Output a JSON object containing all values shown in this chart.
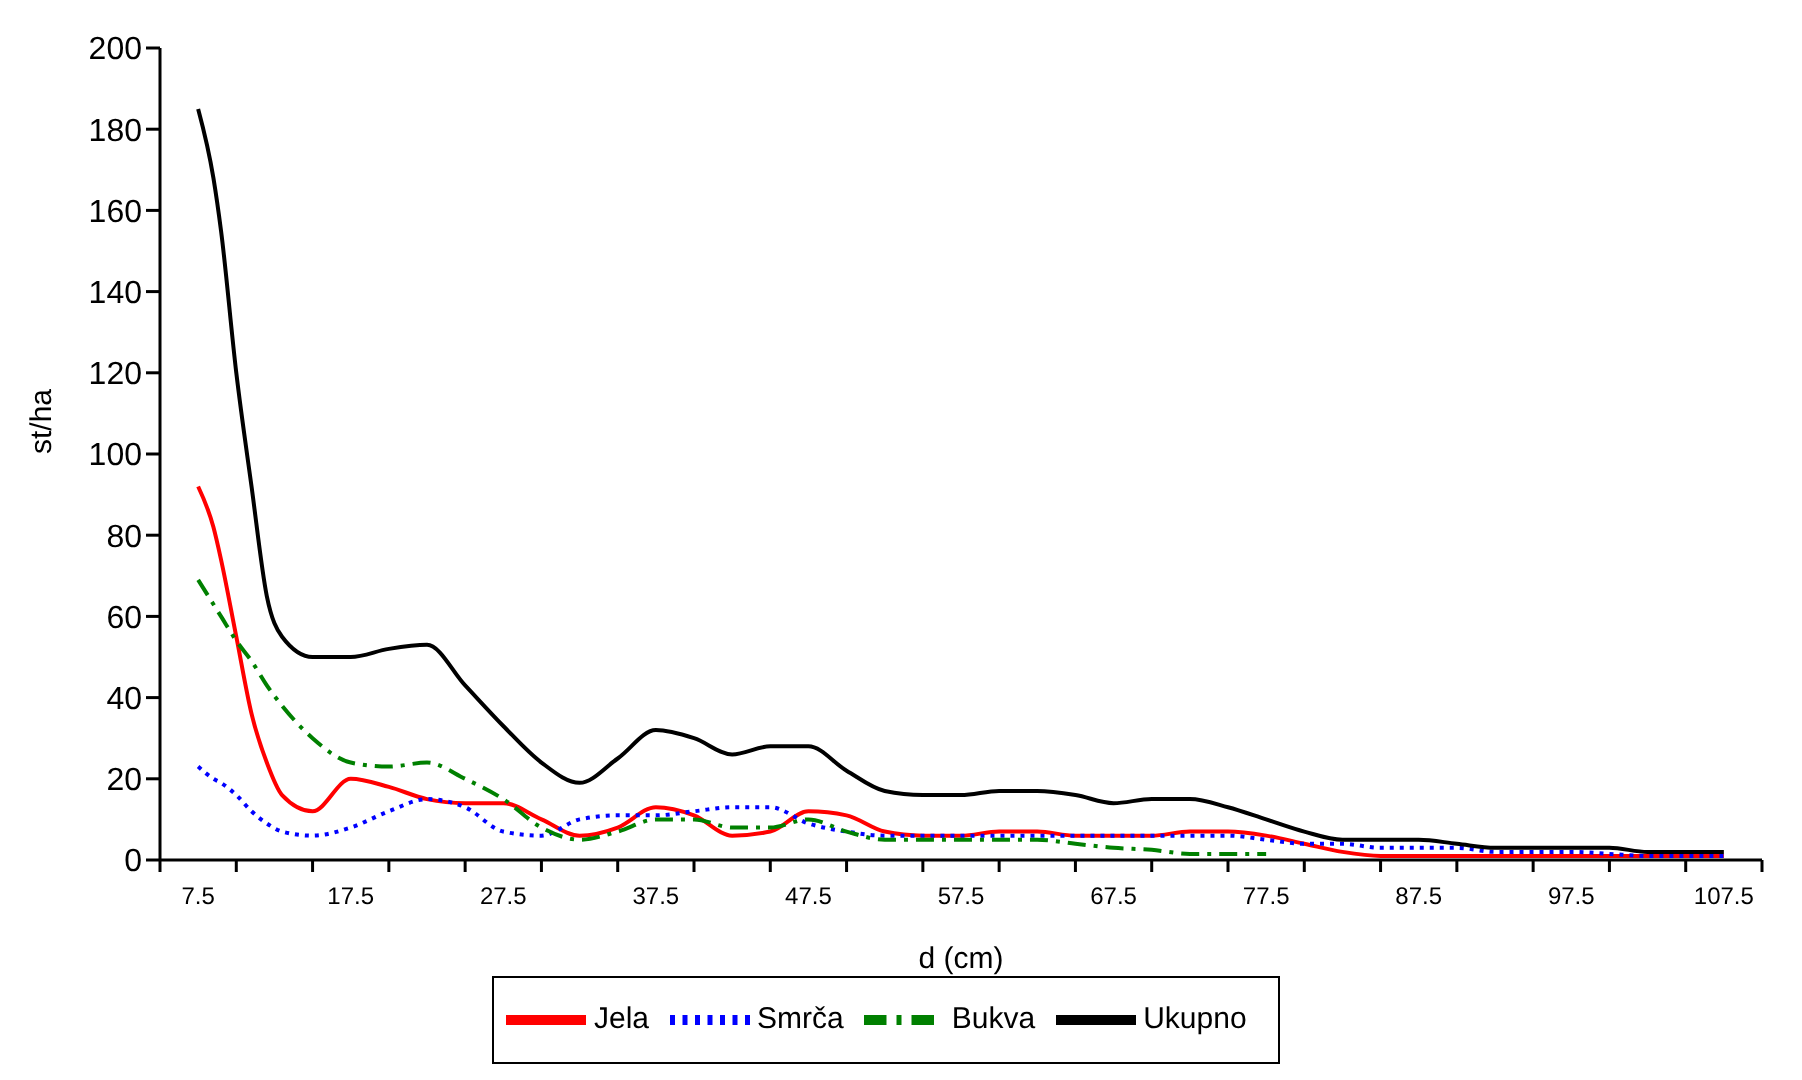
{
  "chart_data": {
    "type": "line",
    "xlabel": "d (cm)",
    "ylabel": "st/ha",
    "x": [
      7.5,
      8.5,
      9,
      10,
      11,
      12,
      13,
      15,
      17.5,
      20,
      22.5,
      25,
      27.5,
      30,
      32.5,
      35,
      37.5,
      40,
      42.5,
      45,
      47.5,
      50,
      52.5,
      55,
      57.5,
      60,
      62.5,
      65,
      67.5,
      70,
      72.5,
      75,
      77.5,
      80,
      82.5,
      85,
      87.5,
      90,
      92.5,
      95,
      97.5,
      100,
      102.5,
      105,
      107.5
    ],
    "series": [
      {
        "name": "Jela",
        "color": "#ff0000",
        "line_style": "solid",
        "values": [
          92,
          82,
          74,
          55,
          36,
          24,
          16,
          12,
          20,
          18,
          15,
          14,
          14,
          10,
          6,
          8,
          13,
          11,
          6,
          7,
          12,
          11,
          7,
          6,
          6,
          7,
          7,
          6,
          6,
          6,
          7,
          7,
          6,
          4,
          2,
          1,
          1,
          1,
          1,
          1,
          1,
          1,
          1,
          1,
          1
        ]
      },
      {
        "name": "Smrča",
        "color": "#0000ff",
        "line_style": "dotted",
        "values": [
          23,
          20,
          19,
          16,
          12,
          9,
          7,
          6,
          8,
          12,
          15,
          13,
          7,
          6,
          10,
          11,
          11,
          12,
          13,
          13,
          9,
          7,
          6,
          6,
          6,
          6,
          6,
          6,
          6,
          6,
          6,
          6,
          5,
          4,
          4,
          3,
          3,
          3,
          2,
          2,
          2,
          1.5,
          1,
          1,
          1
        ]
      },
      {
        "name": "Bukva",
        "color": "#008000",
        "line_style": "dashed",
        "values": [
          69,
          63,
          60,
          54,
          49,
          43,
          38,
          30,
          24,
          23,
          24,
          20,
          15,
          8,
          5,
          7,
          10,
          10,
          8,
          8,
          10,
          7,
          5,
          5,
          5,
          5,
          5,
          4,
          3,
          2.5,
          1.5,
          1.5,
          1.5,
          null,
          null,
          null,
          null,
          null,
          null,
          null,
          null,
          null,
          null,
          null,
          null
        ]
      },
      {
        "name": "Ukupno",
        "color": "#000000",
        "line_style": "solid",
        "values": [
          185,
          168,
          155,
          120,
          92,
          65,
          55,
          50,
          50,
          52,
          53,
          43,
          33,
          24,
          19,
          25,
          32,
          30,
          26,
          28,
          28,
          22,
          17,
          16,
          16,
          17,
          17,
          16,
          14,
          15,
          15,
          13,
          10,
          7,
          5,
          5,
          5,
          4,
          3,
          3,
          3,
          3,
          2,
          2,
          2
        ]
      }
    ],
    "xlim": [
      5,
      110
    ],
    "xticks": [
      {
        "value": 5,
        "label": null
      },
      7.5,
      {
        "value": 10,
        "label": null
      },
      {
        "value": 15,
        "label": null
      },
      17.5,
      {
        "value": 20,
        "label": null
      },
      {
        "value": 25,
        "label": null
      },
      27.5,
      {
        "value": 30,
        "label": null
      },
      {
        "value": 35,
        "label": null
      },
      37.5,
      {
        "value": 40,
        "label": null
      },
      {
        "value": 45,
        "label": null
      },
      47.5,
      {
        "value": 50,
        "label": null
      },
      {
        "value": 55,
        "label": null
      },
      57.5,
      {
        "value": 60,
        "label": null
      },
      {
        "value": 65,
        "label": null
      },
      67.5,
      {
        "value": 70,
        "label": null
      },
      {
        "value": 75,
        "label": null
      },
      77.5,
      {
        "value": 80,
        "label": null
      },
      {
        "value": 85,
        "label": null
      },
      87.5,
      {
        "value": 90,
        "label": null
      },
      {
        "value": 95,
        "label": null
      },
      97.5,
      {
        "value": 100,
        "label": null
      },
      {
        "value": 105,
        "label": null
      },
      107.5,
      {
        "value": 110,
        "label": null
      }
    ],
    "ylim": [
      0,
      200
    ],
    "yticks": [
      0,
      20,
      40,
      60,
      80,
      100,
      120,
      140,
      160,
      180,
      200
    ],
    "grid": false,
    "legend": "bottom",
    "marker": "none"
  }
}
